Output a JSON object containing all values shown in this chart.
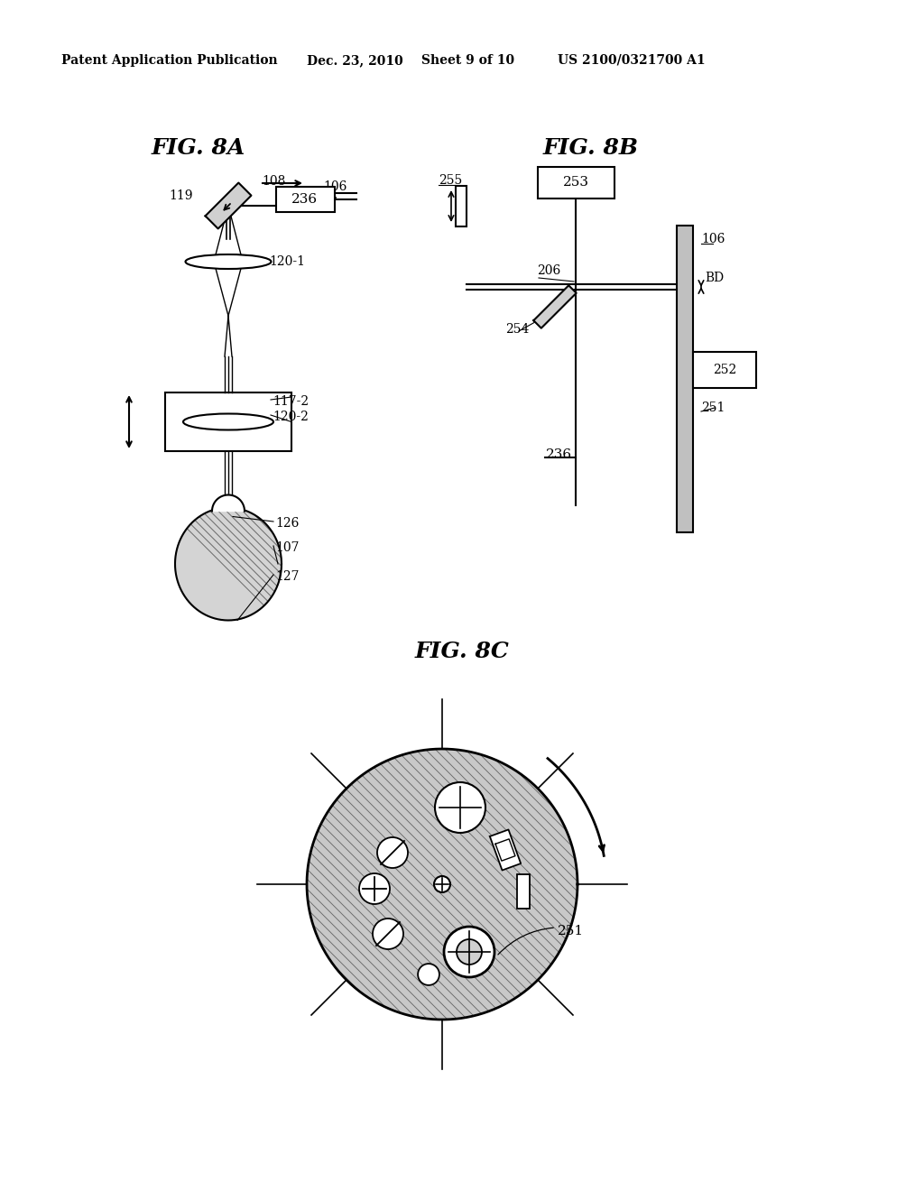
{
  "bg_color": "#ffffff",
  "header_left": "Patent Application Publication",
  "header_date": "Dec. 23, 2010",
  "header_sheet": "Sheet 9 of 10",
  "header_patent": "US 2100/0321700 A1",
  "fig8a_title": "FIG. 8A",
  "fig8b_title": "FIG. 8B",
  "fig8c_title": "FIG. 8C"
}
